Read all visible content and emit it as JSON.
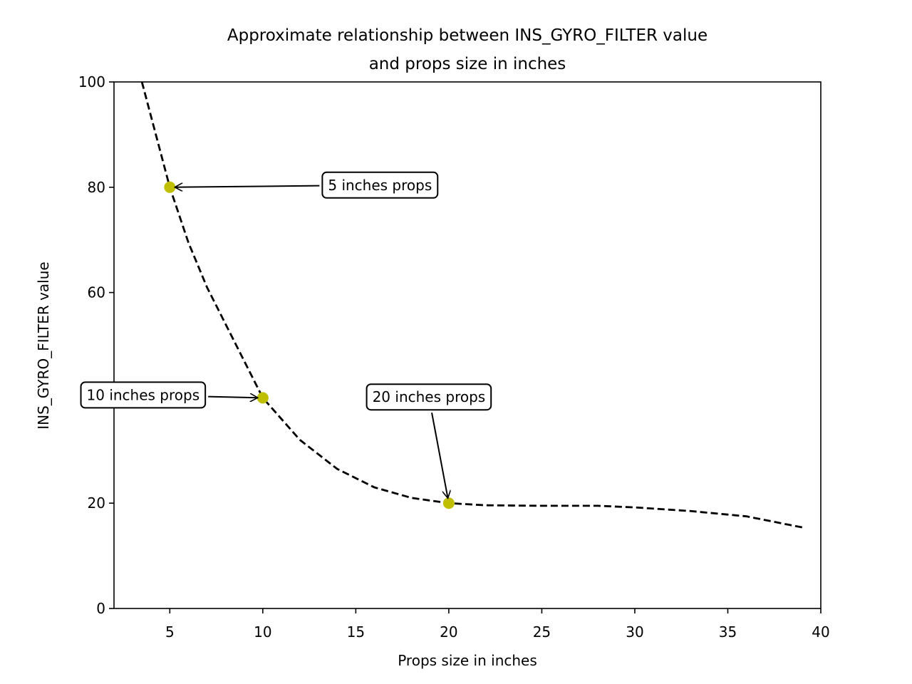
{
  "chart_data": {
    "type": "line",
    "title": "Approximate relationship between INS_GYRO_FILTER value\nand props size in inches",
    "x_label": "Props size in inches",
    "y_label": "INS_GYRO_FILTER value",
    "xlim": [
      2,
      40
    ],
    "ylim": [
      0,
      100
    ],
    "xticks": [
      5,
      10,
      15,
      20,
      25,
      30,
      35,
      40
    ],
    "yticks": [
      0,
      20,
      40,
      60,
      80,
      100
    ],
    "grid": false,
    "series": [
      {
        "type": "line",
        "color": "#000000",
        "dashed": true,
        "x": [
          3.5,
          5,
          6,
          7,
          8,
          9,
          10,
          12,
          14,
          16,
          18,
          20,
          22,
          25,
          28,
          30,
          33,
          36,
          39
        ],
        "values": [
          100,
          80,
          69.5,
          61,
          54,
          47,
          40,
          32,
          26.5,
          23,
          21,
          20,
          19.6,
          19.5,
          19.5,
          19.2,
          18.5,
          17.5,
          15.4
        ]
      },
      {
        "type": "scatter",
        "color": "#bfbf00",
        "x": [
          5,
          10,
          20
        ],
        "values": [
          80,
          40,
          20
        ],
        "annotations": [
          "5 inches props",
          "10 inches props",
          "20 inches props"
        ]
      }
    ]
  }
}
